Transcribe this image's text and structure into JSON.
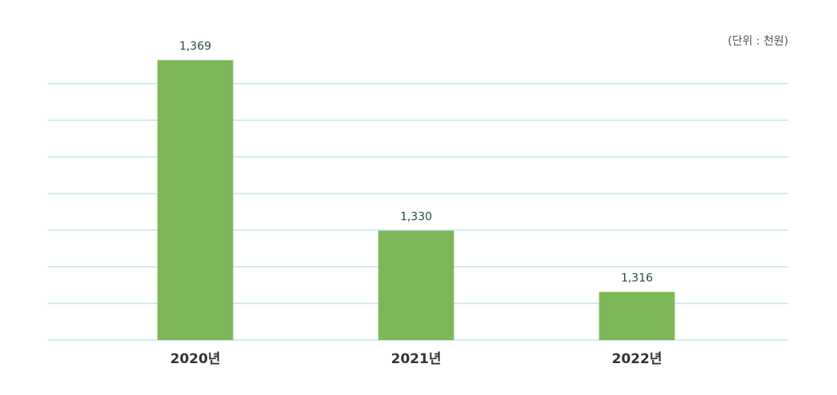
{
  "chart_data": {
    "type": "bar",
    "unit": "(단위 : 천원)",
    "categories": [
      "2020년",
      "2021년",
      "2022년"
    ],
    "values": [
      1369,
      1330,
      1316
    ],
    "value_labels": [
      "1,369",
      "1,330",
      "1,316"
    ],
    "color": "#7db757",
    "ylim": [
      1305,
      1372
    ]
  }
}
